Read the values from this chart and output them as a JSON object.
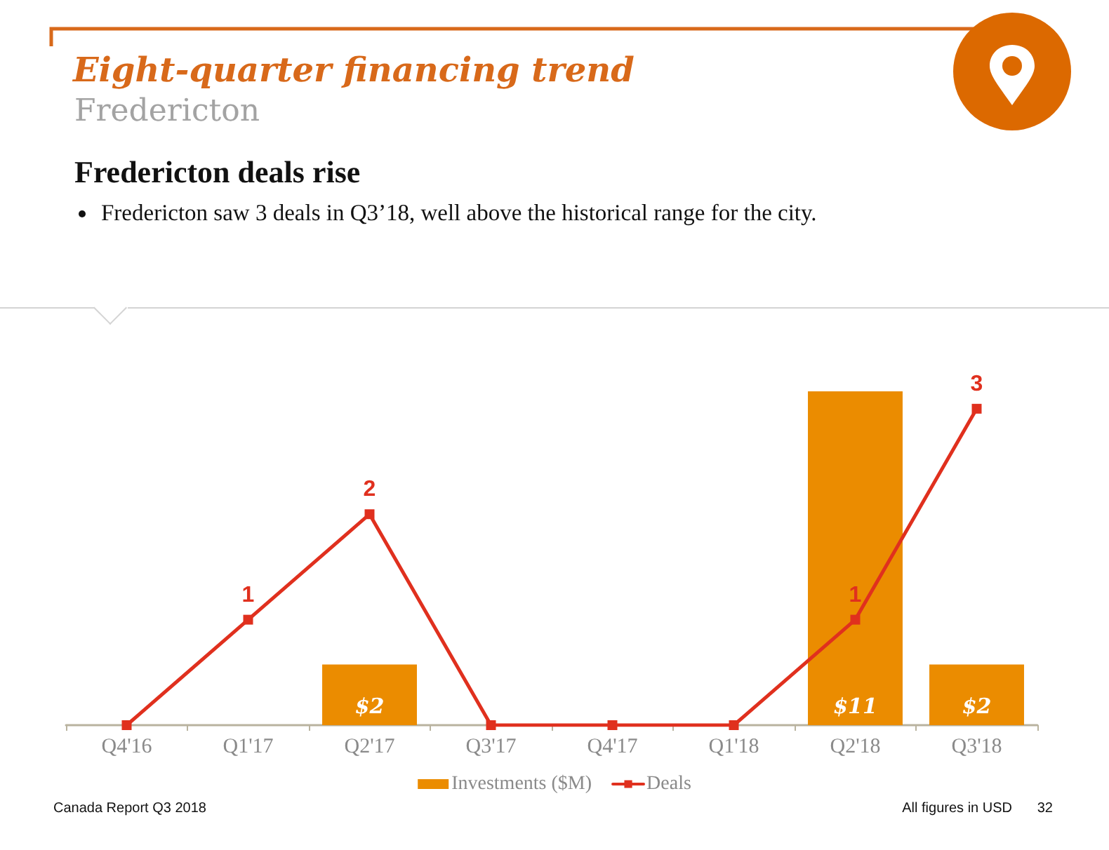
{
  "chart_data": {
    "type": "bar",
    "title": "Eight-quarter financing trend",
    "subtitle": "Fredericton",
    "annotations": [
      "Fredericton deals rise",
      "Fredericton saw 3 deals in Q3’18, well above the historical range for the city.",
      "Canada Report Q3 2018",
      "All figures in USD",
      "32"
    ],
    "categories": [
      "Q4'16",
      "Q1'17",
      "Q2'17",
      "Q3'17",
      "Q4'17",
      "Q1'18",
      "Q2'18",
      "Q3'18"
    ],
    "series": [
      {
        "name": "Investments ($M)",
        "color": "#eb8c00",
        "values": [
          0,
          0,
          2,
          0,
          0,
          0,
          11,
          2
        ],
        "value_labels": [
          null,
          null,
          "$2",
          null,
          null,
          null,
          "$11",
          "$2"
        ]
      },
      {
        "name": "Deals",
        "type": "line",
        "axis": "y2",
        "color": "#e0301e",
        "values": [
          0,
          1,
          2,
          0,
          0,
          0,
          1,
          3
        ],
        "value_labels": [
          null,
          "1",
          "2",
          null,
          null,
          null,
          "1",
          "3"
        ]
      }
    ],
    "legend": "bottom",
    "marker": "square",
    "line_style": "solid",
    "tick_labels": "x"
  }
}
